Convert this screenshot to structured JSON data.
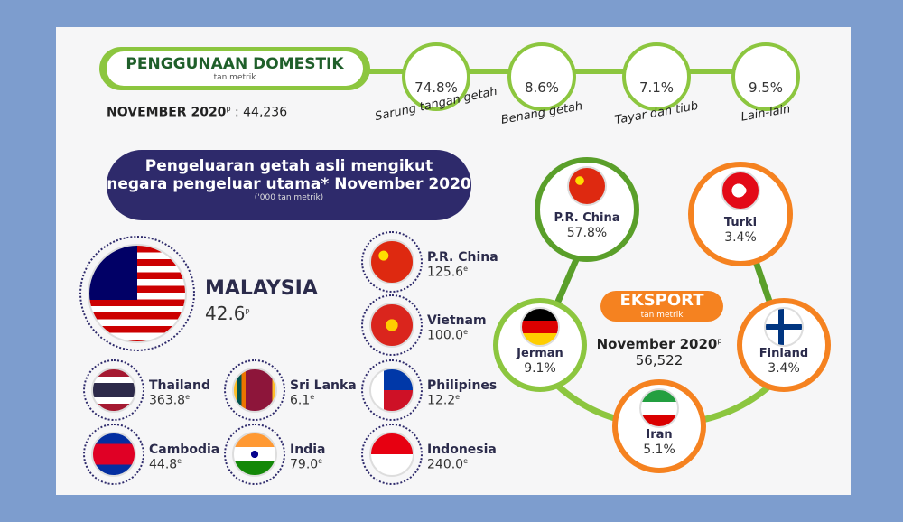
{
  "domestic": {
    "title": "PENGGUNAAN DOMESTIK",
    "unit": "tan metrik",
    "period": "NOVEMBER 2020",
    "period_note": "p",
    "total_text": ": 44,236",
    "items": [
      {
        "pct": "74.8%",
        "label": "Sarung tangan getah"
      },
      {
        "pct": "8.6%",
        "label": "Benang getah"
      },
      {
        "pct": "7.1%",
        "label": "Tayar dan tiub"
      },
      {
        "pct": "9.5%",
        "label": "Lain-lain"
      }
    ]
  },
  "production": {
    "title_line1": "Pengeluaran getah asli mengikut",
    "title_line2": "negara pengeluar utama* November 2020",
    "unit": "('000 tan metrik)",
    "countries": [
      {
        "name": "MALAYSIA",
        "value": "42.6",
        "note": "p"
      },
      {
        "name": "Thailand",
        "value": "363.8",
        "note": "e"
      },
      {
        "name": "Sri Lanka",
        "value": "6.1",
        "note": "e"
      },
      {
        "name": "Cambodia",
        "value": "44.8",
        "note": "e"
      },
      {
        "name": "India",
        "value": "79.0",
        "note": "e"
      },
      {
        "name": "P.R. China",
        "value": "125.6",
        "note": "e"
      },
      {
        "name": "Vietnam",
        "value": "100.0",
        "note": "e"
      },
      {
        "name": "Philipines",
        "value": "12.2",
        "note": "e"
      },
      {
        "name": "Indonesia",
        "value": "240.0",
        "note": "e"
      }
    ]
  },
  "export": {
    "title": "EKSPORT",
    "unit": "tan metrik",
    "period": "November 2020",
    "period_note": "p",
    "total": "56,522",
    "countries": [
      {
        "name": "P.R. China",
        "pct": "57.8%"
      },
      {
        "name": "Turki",
        "pct": "3.4%"
      },
      {
        "name": "Jerman",
        "pct": "9.1%"
      },
      {
        "name": "Finland",
        "pct": "3.4%"
      },
      {
        "name": "Iran",
        "pct": "5.1%"
      }
    ]
  }
}
